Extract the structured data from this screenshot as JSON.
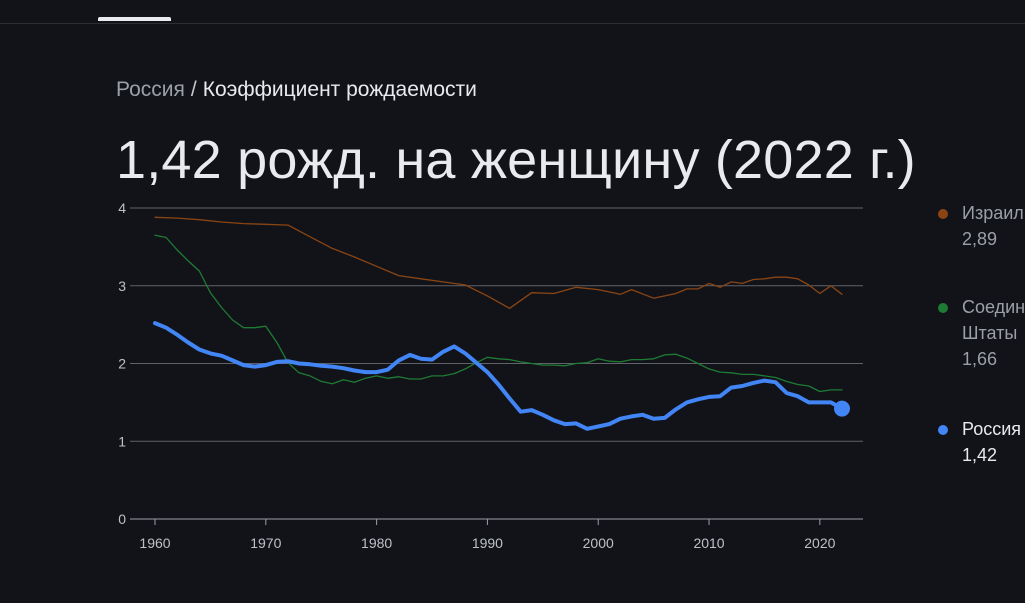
{
  "breadcrumb": {
    "parent": "Россия",
    "separator": "/",
    "current": "Коэффициент рождаемости"
  },
  "headline": "1,42 рожд. на женщину (2022 г.)",
  "legend": [
    {
      "name": "Израиль",
      "value": "2,89",
      "color": "#8b4513",
      "active": false
    },
    {
      "name": "Соединённые\nШтаты",
      "value": "1,66",
      "color": "#1e7b34",
      "active": false
    },
    {
      "name": "Россия",
      "value": "1,42",
      "color": "#4285f4",
      "active": true
    }
  ],
  "chart_data": {
    "type": "line",
    "xlim": [
      1960,
      2022
    ],
    "ylim": [
      0,
      4
    ],
    "x_ticks": [
      1960,
      1970,
      1980,
      1990,
      2000,
      2010,
      2020
    ],
    "y_ticks": [
      0,
      1,
      2,
      3,
      4
    ],
    "grid": true,
    "legend_position": "right",
    "series": [
      {
        "name": "Израиль",
        "color": "#8b4513",
        "x": [
          1960,
          1962,
          1964,
          1966,
          1968,
          1970,
          1972,
          1974,
          1976,
          1978,
          1980,
          1982,
          1984,
          1986,
          1988,
          1990,
          1992,
          1994,
          1996,
          1998,
          2000,
          2002,
          2003,
          2005,
          2007,
          2008,
          2009,
          2010,
          2011,
          2012,
          2013,
          2014,
          2015,
          2016,
          2017,
          2018,
          2019,
          2020,
          2021,
          2022
        ],
        "y": [
          3.88,
          3.87,
          3.85,
          3.82,
          3.8,
          3.79,
          3.78,
          3.63,
          3.48,
          3.37,
          3.25,
          3.13,
          3.09,
          3.05,
          3.01,
          2.87,
          2.71,
          2.91,
          2.9,
          2.98,
          2.95,
          2.89,
          2.95,
          2.84,
          2.9,
          2.96,
          2.96,
          3.03,
          2.98,
          3.05,
          3.03,
          3.08,
          3.09,
          3.11,
          3.11,
          3.09,
          3.01,
          2.9,
          3.0,
          2.89
        ]
      },
      {
        "name": "Соединённые Штаты",
        "color": "#1e7b34",
        "x": [
          1960,
          1961,
          1962,
          1963,
          1964,
          1965,
          1966,
          1967,
          1968,
          1969,
          1970,
          1971,
          1972,
          1973,
          1974,
          1975,
          1976,
          1977,
          1978,
          1979,
          1980,
          1981,
          1982,
          1983,
          1984,
          1985,
          1986,
          1987,
          1988,
          1989,
          1990,
          1991,
          1992,
          1993,
          1994,
          1995,
          1996,
          1997,
          1998,
          1999,
          2000,
          2001,
          2002,
          2003,
          2004,
          2005,
          2006,
          2007,
          2008,
          2009,
          2010,
          2011,
          2012,
          2013,
          2014,
          2015,
          2016,
          2017,
          2018,
          2019,
          2020,
          2021,
          2022
        ],
        "y": [
          3.65,
          3.62,
          3.46,
          3.32,
          3.19,
          2.91,
          2.72,
          2.56,
          2.46,
          2.46,
          2.48,
          2.27,
          2.01,
          1.88,
          1.84,
          1.77,
          1.74,
          1.79,
          1.76,
          1.81,
          1.84,
          1.81,
          1.83,
          1.8,
          1.8,
          1.84,
          1.84,
          1.87,
          1.93,
          2.01,
          2.08,
          2.06,
          2.05,
          2.02,
          2.0,
          1.98,
          1.98,
          1.97,
          2.0,
          2.01,
          2.06,
          2.03,
          2.02,
          2.05,
          2.05,
          2.06,
          2.11,
          2.12,
          2.07,
          2.0,
          1.93,
          1.89,
          1.88,
          1.86,
          1.86,
          1.84,
          1.82,
          1.77,
          1.73,
          1.71,
          1.64,
          1.66,
          1.66
        ]
      },
      {
        "name": "Россия",
        "color": "#4285f4",
        "x": [
          1960,
          1961,
          1962,
          1963,
          1964,
          1965,
          1966,
          1967,
          1968,
          1969,
          1970,
          1971,
          1972,
          1973,
          1974,
          1975,
          1976,
          1977,
          1978,
          1979,
          1980,
          1981,
          1982,
          1983,
          1984,
          1985,
          1986,
          1987,
          1988,
          1989,
          1990,
          1991,
          1992,
          1993,
          1994,
          1995,
          1996,
          1997,
          1998,
          1999,
          2000,
          2001,
          2002,
          2003,
          2004,
          2005,
          2006,
          2007,
          2008,
          2009,
          2010,
          2011,
          2012,
          2013,
          2014,
          2015,
          2016,
          2017,
          2018,
          2019,
          2020,
          2021,
          2022
        ],
        "y": [
          2.52,
          2.46,
          2.37,
          2.27,
          2.18,
          2.13,
          2.1,
          2.04,
          1.98,
          1.96,
          1.98,
          2.02,
          2.03,
          2.0,
          1.99,
          1.97,
          1.96,
          1.94,
          1.91,
          1.89,
          1.89,
          1.92,
          2.04,
          2.11,
          2.06,
          2.05,
          2.15,
          2.22,
          2.13,
          2.01,
          1.89,
          1.73,
          1.55,
          1.38,
          1.4,
          1.34,
          1.27,
          1.22,
          1.23,
          1.16,
          1.19,
          1.22,
          1.29,
          1.32,
          1.34,
          1.29,
          1.3,
          1.41,
          1.5,
          1.54,
          1.57,
          1.58,
          1.69,
          1.71,
          1.75,
          1.78,
          1.76,
          1.62,
          1.58,
          1.5,
          1.5,
          1.5,
          1.42
        ]
      }
    ]
  }
}
